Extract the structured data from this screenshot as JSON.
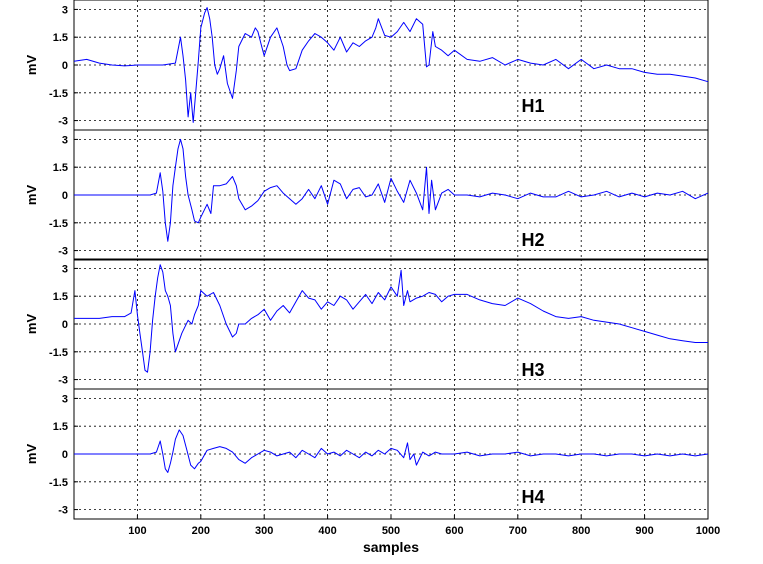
{
  "chart_data": {
    "type": "line",
    "xlabel": "samples",
    "xlim": [
      0,
      1000
    ],
    "x_ticks": [
      "100",
      "200",
      "300",
      "400",
      "500",
      "600",
      "700",
      "800",
      "900",
      "1000"
    ],
    "y_ticks": [
      "3",
      "1.5",
      "0",
      "-1.5",
      "-3"
    ],
    "ylim": [
      -3.4,
      3.4
    ],
    "grid": true,
    "line_color": "#0000ff",
    "panels": [
      {
        "label": "H1",
        "ylabel": "mV",
        "x": [
          0,
          20,
          40,
          60,
          80,
          100,
          120,
          140,
          160,
          168,
          172,
          176,
          180,
          184,
          188,
          192,
          196,
          200,
          206,
          210,
          214,
          218,
          222,
          226,
          230,
          236,
          242,
          250,
          256,
          260,
          270,
          280,
          286,
          290,
          296,
          300,
          310,
          320,
          330,
          336,
          340,
          350,
          360,
          370,
          380,
          390,
          400,
          410,
          420,
          430,
          440,
          450,
          460,
          470,
          476,
          480,
          490,
          500,
          510,
          520,
          530,
          540,
          550,
          556,
          560,
          566,
          570,
          580,
          590,
          600,
          620,
          640,
          660,
          680,
          700,
          720,
          740,
          760,
          780,
          800,
          820,
          840,
          860,
          880,
          900,
          920,
          940,
          960,
          980,
          1000
        ],
        "y": [
          0.2,
          0.3,
          0.1,
          0.0,
          -0.05,
          0.0,
          0.0,
          0.0,
          0.1,
          1.5,
          0.5,
          -0.8,
          -2.8,
          -1.5,
          -3.1,
          -1.5,
          0.2,
          2.0,
          2.8,
          3.1,
          2.5,
          1.5,
          0.0,
          -0.5,
          -0.2,
          0.5,
          -1.0,
          -1.8,
          -0.3,
          1.0,
          1.7,
          1.5,
          2.0,
          1.8,
          1.0,
          0.5,
          1.5,
          2.0,
          1.0,
          0.0,
          -0.3,
          -0.2,
          0.8,
          1.3,
          1.7,
          1.5,
          1.2,
          0.8,
          1.5,
          0.7,
          1.2,
          1.0,
          1.3,
          1.5,
          2.0,
          2.5,
          1.6,
          1.5,
          1.8,
          2.3,
          1.8,
          2.5,
          2.2,
          -0.1,
          0.0,
          1.8,
          1.0,
          0.8,
          0.5,
          0.8,
          0.3,
          0.2,
          0.4,
          0.0,
          0.3,
          0.1,
          0.0,
          0.3,
          -0.2,
          0.3,
          -0.2,
          0.0,
          -0.2,
          -0.2,
          -0.4,
          -0.5,
          -0.5,
          -0.6,
          -0.7,
          -0.9
        ]
      },
      {
        "label": "H2",
        "ylabel": "mV",
        "x": [
          0,
          20,
          40,
          60,
          80,
          100,
          120,
          130,
          136,
          140,
          144,
          148,
          152,
          156,
          160,
          164,
          168,
          172,
          176,
          180,
          186,
          190,
          196,
          200,
          210,
          216,
          220,
          230,
          240,
          250,
          256,
          260,
          270,
          280,
          290,
          300,
          310,
          320,
          330,
          340,
          350,
          360,
          370,
          380,
          390,
          400,
          410,
          420,
          430,
          440,
          450,
          460,
          470,
          480,
          490,
          500,
          510,
          520,
          530,
          540,
          550,
          556,
          560,
          564,
          570,
          580,
          590,
          600,
          620,
          640,
          660,
          680,
          700,
          720,
          740,
          760,
          780,
          800,
          820,
          840,
          860,
          880,
          900,
          920,
          940,
          960,
          980,
          1000
        ],
        "y": [
          0.0,
          0.0,
          0.0,
          0.0,
          0.0,
          0.0,
          0.0,
          0.1,
          1.2,
          0.2,
          -1.5,
          -2.5,
          -1.5,
          0.5,
          1.5,
          2.5,
          3.0,
          2.5,
          1.0,
          0.0,
          -0.8,
          -1.4,
          -1.5,
          -1.2,
          -0.5,
          -1.0,
          0.5,
          0.5,
          0.6,
          1.0,
          0.5,
          -0.2,
          -0.8,
          -0.6,
          -0.3,
          0.2,
          0.4,
          0.5,
          0.1,
          -0.2,
          -0.5,
          -0.2,
          0.3,
          -0.2,
          0.5,
          -0.5,
          0.8,
          0.6,
          -0.2,
          0.3,
          0.4,
          -0.1,
          0.0,
          0.6,
          -0.4,
          0.9,
          0.2,
          -0.4,
          0.8,
          0.1,
          -0.8,
          1.5,
          -1.0,
          0.8,
          -0.8,
          0.1,
          0.3,
          0.0,
          0.0,
          -0.1,
          0.1,
          0.0,
          -0.2,
          0.1,
          -0.1,
          -0.1,
          0.2,
          -0.1,
          0.0,
          0.2,
          -0.1,
          0.1,
          -0.1,
          0.1,
          0.0,
          0.2,
          -0.2,
          0.1
        ]
      },
      {
        "label": "H3",
        "ylabel": "mV",
        "x": [
          0,
          20,
          40,
          60,
          80,
          90,
          96,
          100,
          104,
          108,
          112,
          116,
          120,
          124,
          128,
          132,
          136,
          140,
          144,
          148,
          152,
          156,
          160,
          170,
          180,
          186,
          190,
          196,
          200,
          210,
          220,
          230,
          240,
          250,
          256,
          260,
          270,
          280,
          290,
          300,
          310,
          320,
          330,
          340,
          350,
          360,
          370,
          380,
          390,
          400,
          410,
          420,
          430,
          440,
          450,
          460,
          470,
          480,
          490,
          500,
          510,
          516,
          520,
          526,
          530,
          540,
          550,
          560,
          570,
          580,
          590,
          600,
          620,
          640,
          660,
          680,
          700,
          720,
          740,
          760,
          780,
          800,
          820,
          840,
          860,
          880,
          900,
          920,
          940,
          960,
          980,
          1000
        ],
        "y": [
          0.3,
          0.3,
          0.3,
          0.4,
          0.4,
          0.6,
          1.8,
          0.5,
          -0.5,
          -1.5,
          -2.5,
          -2.6,
          -1.5,
          0.2,
          1.5,
          2.5,
          3.2,
          2.8,
          1.8,
          1.5,
          1.0,
          -0.5,
          -1.5,
          -0.5,
          0.2,
          0.0,
          0.5,
          1.0,
          1.8,
          1.5,
          1.7,
          1.0,
          0.0,
          -0.7,
          -0.5,
          0.0,
          0.0,
          0.3,
          0.5,
          0.8,
          0.2,
          0.7,
          1.0,
          0.6,
          1.2,
          1.8,
          1.4,
          1.3,
          0.8,
          1.2,
          1.0,
          1.5,
          1.3,
          0.8,
          1.2,
          1.6,
          1.1,
          1.7,
          1.3,
          2.0,
          1.5,
          2.9,
          1.0,
          1.8,
          1.2,
          1.4,
          1.5,
          1.7,
          1.6,
          1.2,
          1.5,
          1.6,
          1.6,
          1.3,
          1.1,
          1.0,
          1.4,
          1.1,
          0.7,
          0.4,
          0.3,
          0.4,
          0.2,
          0.1,
          0.0,
          -0.2,
          -0.4,
          -0.6,
          -0.8,
          -0.9,
          -1.0,
          -1.0
        ]
      },
      {
        "label": "H4",
        "ylabel": "mV",
        "x": [
          0,
          20,
          40,
          60,
          80,
          100,
          120,
          130,
          136,
          140,
          144,
          148,
          152,
          156,
          160,
          166,
          172,
          178,
          184,
          190,
          196,
          200,
          210,
          220,
          230,
          240,
          250,
          260,
          270,
          280,
          290,
          300,
          310,
          320,
          330,
          340,
          350,
          360,
          370,
          380,
          390,
          400,
          410,
          420,
          430,
          440,
          450,
          460,
          470,
          480,
          490,
          500,
          510,
          520,
          526,
          530,
          536,
          540,
          550,
          560,
          570,
          580,
          600,
          620,
          640,
          660,
          680,
          700,
          720,
          740,
          760,
          780,
          800,
          820,
          840,
          860,
          880,
          900,
          920,
          940,
          960,
          980,
          1000
        ],
        "y": [
          0.0,
          0.0,
          0.0,
          0.0,
          0.0,
          0.0,
          0.0,
          0.1,
          0.7,
          0.0,
          -0.8,
          -1.0,
          -0.5,
          0.1,
          0.8,
          1.3,
          1.0,
          0.2,
          -0.6,
          -0.8,
          -0.5,
          -0.4,
          0.2,
          0.3,
          0.4,
          0.3,
          0.1,
          -0.3,
          -0.5,
          -0.2,
          0.0,
          0.2,
          0.1,
          -0.1,
          0.0,
          0.1,
          -0.2,
          0.2,
          0.0,
          -0.2,
          0.3,
          0.0,
          0.1,
          -0.1,
          0.2,
          0.0,
          -0.2,
          0.1,
          -0.1,
          0.2,
          0.0,
          0.3,
          0.2,
          -0.2,
          0.6,
          -0.3,
          0.0,
          -0.6,
          0.1,
          -0.1,
          0.1,
          0.0,
          0.0,
          0.1,
          -0.1,
          0.0,
          0.0,
          0.1,
          -0.1,
          0.0,
          0.0,
          -0.1,
          0.0,
          0.0,
          -0.1,
          0.0,
          0.0,
          -0.1,
          0.0,
          -0.1,
          0.0,
          -0.1,
          0.0
        ]
      }
    ]
  }
}
